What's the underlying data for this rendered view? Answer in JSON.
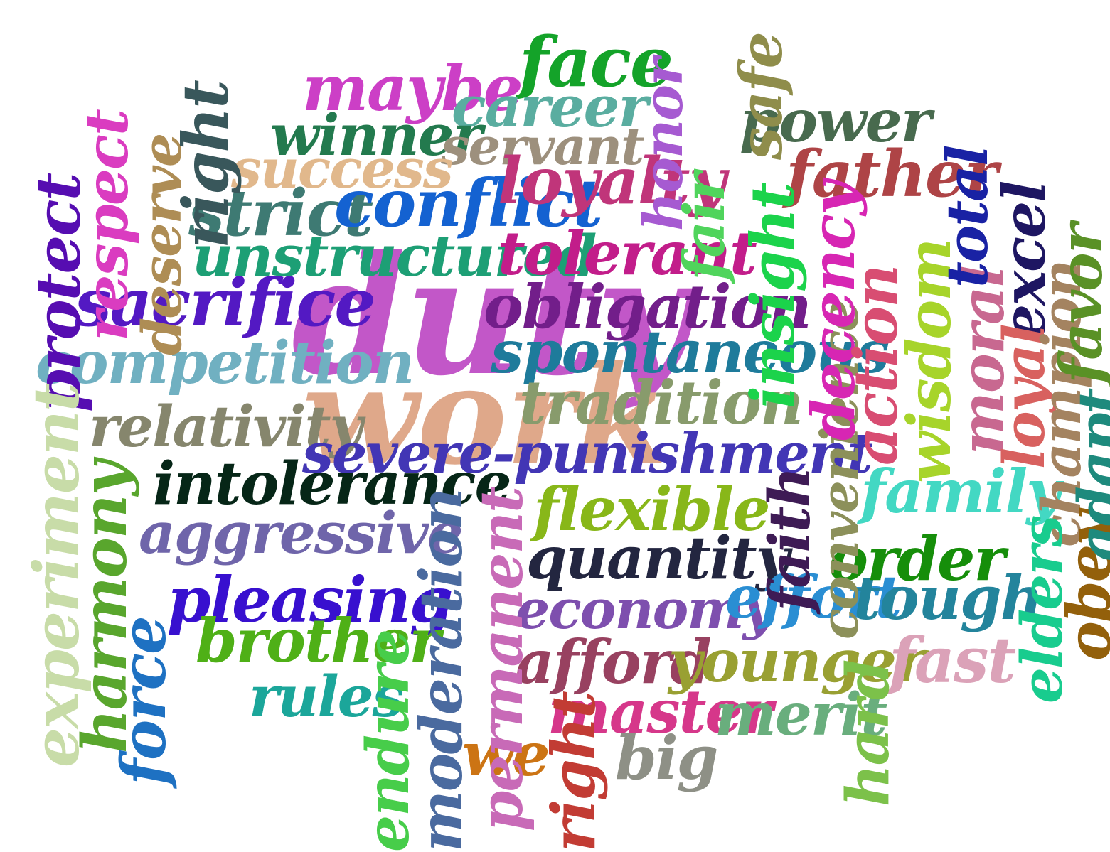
{
  "words": [
    {
      "text": "duty",
      "color": "#c257c8"
    },
    {
      "text": "work",
      "color": "#dfa88a"
    },
    {
      "text": "maybe",
      "color": "#cc3fc6"
    },
    {
      "text": "face",
      "color": "#14a329"
    },
    {
      "text": "career",
      "color": "#5aada0"
    },
    {
      "text": "winner",
      "color": "#237a4e"
    },
    {
      "text": "servant",
      "color": "#9d907d"
    },
    {
      "text": "success",
      "color": "#e1b88c"
    },
    {
      "text": "strict",
      "color": "#3e7a73"
    },
    {
      "text": "conflict",
      "color": "#1462d1"
    },
    {
      "text": "loyalty",
      "color": "#c0357a"
    },
    {
      "text": "honor",
      "color": "#a65ad1"
    },
    {
      "text": "power",
      "color": "#486a4e"
    },
    {
      "text": "safe",
      "color": "#8f8d4b"
    },
    {
      "text": "father",
      "color": "#ae4446"
    },
    {
      "text": "unstructured",
      "color": "#1d9f75"
    },
    {
      "text": "tolerant",
      "color": "#c21d8a"
    },
    {
      "text": "fair",
      "color": "#50d45c"
    },
    {
      "text": "insight",
      "color": "#1bd34b"
    },
    {
      "text": "sacrifice",
      "color": "#5319c3"
    },
    {
      "text": "obligation",
      "color": "#721e8a"
    },
    {
      "text": "competition",
      "color": "#70b0c1"
    },
    {
      "text": "spontaneous",
      "color": "#1e7b9b"
    },
    {
      "text": "tradition",
      "color": "#889b6c"
    },
    {
      "text": "relativity",
      "color": "#86866d"
    },
    {
      "text": "severe-punishment",
      "color": "#4236b5"
    },
    {
      "text": "intolerance",
      "color": "#062617"
    },
    {
      "text": "flexible",
      "color": "#88b719"
    },
    {
      "text": "aggressive",
      "color": "#6f65aa"
    },
    {
      "text": "quantity",
      "color": "#232640"
    },
    {
      "text": "pleasing",
      "color": "#3810cf"
    },
    {
      "text": "economy",
      "color": "#7e4fae"
    },
    {
      "text": "effort",
      "color": "#2a8ed3"
    },
    {
      "text": "tough",
      "color": "#23849c"
    },
    {
      "text": "order",
      "color": "#168e0a"
    },
    {
      "text": "brother",
      "color": "#4fb017"
    },
    {
      "text": "rules",
      "color": "#1ba69a"
    },
    {
      "text": "afford",
      "color": "#984160"
    },
    {
      "text": "younger",
      "color": "#99a032"
    },
    {
      "text": "fast",
      "color": "#dba2b8"
    },
    {
      "text": "master",
      "color": "#d6378a"
    },
    {
      "text": "merit",
      "color": "#69ae7d"
    },
    {
      "text": "we",
      "color": "#cc7414"
    },
    {
      "text": "big",
      "color": "#8e9086"
    },
    {
      "text": "family",
      "color": "#43d8c3"
    },
    {
      "text": "protect",
      "color": "#560db1"
    },
    {
      "text": "respect",
      "color": "#da3cc0"
    },
    {
      "text": "deserve",
      "color": "#ae8d55"
    },
    {
      "text": "right",
      "color": "#39575b"
    },
    {
      "text": "experiment",
      "color": "#c8dca8"
    },
    {
      "text": "harmony",
      "color": "#59a62d"
    },
    {
      "text": "force",
      "color": "#1e71c2"
    },
    {
      "text": "endure",
      "color": "#47cd4a"
    },
    {
      "text": "moderation",
      "color": "#4a6a9f"
    },
    {
      "text": "permanent",
      "color": "#c86ab7"
    },
    {
      "text": "right",
      "color": "#c23c34"
    },
    {
      "text": "faith",
      "color": "#3e1b55"
    },
    {
      "text": "convenience",
      "color": "#8c905a"
    },
    {
      "text": "decency",
      "color": "#d726b3"
    },
    {
      "text": "action",
      "color": "#d84d72"
    },
    {
      "text": "wisdom",
      "color": "#a7d42a"
    },
    {
      "text": "hard",
      "color": "#7cc14a"
    },
    {
      "text": "moral",
      "color": "#c86890"
    },
    {
      "text": "total",
      "color": "#1922a4"
    },
    {
      "text": "excel",
      "color": "#1e1662"
    },
    {
      "text": "loyal",
      "color": "#d8615f"
    },
    {
      "text": "champion",
      "color": "#a48360"
    },
    {
      "text": "favor",
      "color": "#5a9126"
    },
    {
      "text": "obey",
      "color": "#93600b"
    },
    {
      "text": "elders",
      "color": "#18cc8e"
    },
    {
      "text": "adapt",
      "color": "#1e8a7d"
    }
  ]
}
